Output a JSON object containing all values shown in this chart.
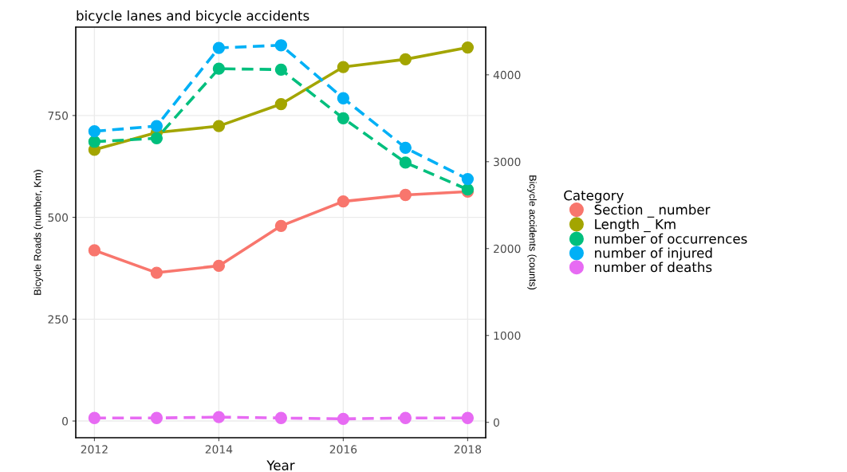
{
  "chart_data": {
    "type": "line",
    "title": "bicycle lanes and bicycle accidents",
    "xlabel": "Year",
    "ylabel": "Bicycle Roads (number, Km)",
    "y2label": "Bicycle accidents (counts)",
    "legend_title": "Category",
    "x": [
      2012,
      2013,
      2014,
      2015,
      2016,
      2017,
      2018
    ],
    "series": [
      {
        "name": "Section _ number",
        "color": "#f8766d",
        "line_style": "solid",
        "values": [
          419,
          364,
          381,
          479,
          539,
          555,
          563
        ]
      },
      {
        "name": "Length _ Km",
        "color": "#a3a500",
        "line_style": "solid",
        "values": [
          666,
          708,
          724,
          778,
          869,
          888,
          917
        ]
      },
      {
        "name": "number of occurrences",
        "color": "#00bf7d",
        "line_style": "dashed",
        "axis": "y2",
        "values": [
          3230,
          3270,
          4070,
          4060,
          3500,
          2990,
          2680
        ]
      },
      {
        "name": "number of injured",
        "color": "#00b0f6",
        "line_style": "dashed",
        "axis": "y2",
        "values": [
          3350,
          3410,
          4310,
          4340,
          3730,
          3160,
          2800
        ]
      },
      {
        "name": "number of deaths",
        "color": "#e76bf3",
        "line_style": "dashed",
        "axis": "y2",
        "values": [
          50,
          50,
          60,
          50,
          40,
          50,
          50
        ]
      }
    ],
    "xlim": [
      2011.7,
      2018.29
    ],
    "xticks": [
      2012,
      2014,
      2016,
      2018
    ],
    "ylim": [
      -41,
      967
    ],
    "yticks": [
      0,
      250,
      500,
      750
    ],
    "y2lim": [
      -177,
      4549
    ],
    "y2ticks": [
      0,
      1000,
      2000,
      3000,
      4000
    ],
    "marker": "circle",
    "grid": true,
    "legend": "right"
  }
}
